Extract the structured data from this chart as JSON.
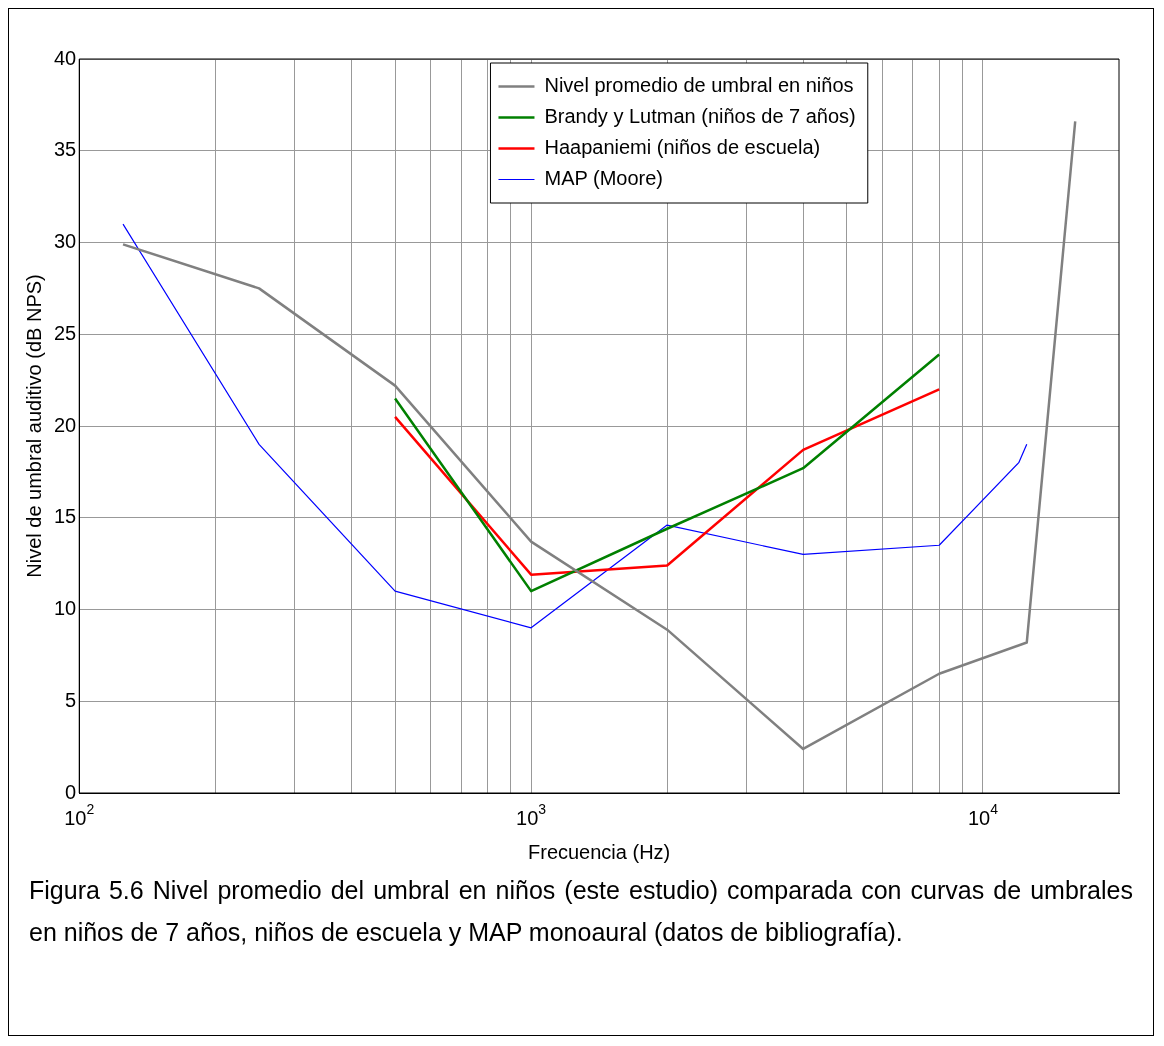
{
  "chart_data": {
    "type": "line",
    "xlabel": "Frecuencia (Hz)",
    "ylabel": "Nivel de umbral auditivo (dB NPS)",
    "log": "x",
    "grid": true,
    "legend": "top",
    "marker": "none",
    "line_style": "solid",
    "xlim": [
      100,
      20000
    ],
    "ylim": [
      0,
      40
    ],
    "xticks": [
      {
        "value": 100,
        "label": "10$^{2}$"
      },
      {
        "value": 200,
        "label": null
      },
      {
        "value": 300,
        "label": null
      },
      {
        "value": 400,
        "label": null
      },
      {
        "value": 500,
        "label": null
      },
      {
        "value": 600,
        "label": null
      },
      {
        "value": 700,
        "label": null
      },
      {
        "value": 800,
        "label": null
      },
      {
        "value": 900,
        "label": null
      },
      {
        "value": 1000,
        "label": "10$^{3}$"
      },
      {
        "value": 2000,
        "label": null
      },
      {
        "value": 3000,
        "label": null
      },
      {
        "value": 4000,
        "label": null
      },
      {
        "value": 5000,
        "label": null
      },
      {
        "value": 6000,
        "label": null
      },
      {
        "value": 7000,
        "label": null
      },
      {
        "value": 8000,
        "label": null
      },
      {
        "value": 9000,
        "label": null
      },
      {
        "value": 10000,
        "label": "10$^{4}$"
      }
    ],
    "yticks": [
      0,
      5,
      10,
      15,
      20,
      25,
      30,
      35,
      40
    ],
    "series": [
      {
        "name": "Nivel promedio de umbral en niños",
        "color": "#808080",
        "x": [
          125,
          250,
          500,
          1000,
          2000,
          4000,
          8000,
          12500,
          16000
        ],
        "values": [
          29.9,
          27.5,
          22.2,
          13.7,
          8.9,
          2.4,
          6.5,
          8.2,
          36.6
        ]
      },
      {
        "name": "Brandy y Lutman (niños de 7 años)",
        "color": "#008000",
        "x": [
          500,
          1000,
          2000,
          4000,
          8000
        ],
        "values": [
          21.5,
          11.0,
          14.4,
          17.7,
          23.9
        ]
      },
      {
        "name": "Haapaniemi (niños de escuela)",
        "color": "#ff0000",
        "x": [
          500,
          1000,
          2000,
          4000,
          8000
        ],
        "values": [
          20.5,
          11.9,
          12.4,
          18.7,
          22.0
        ]
      },
      {
        "name": "MAP (Moore)",
        "color": "#0000ff",
        "x": [
          125,
          250,
          500,
          1000,
          2000,
          4000,
          8000,
          12000,
          12500
        ],
        "values": [
          31.0,
          19.0,
          11.0,
          9.0,
          14.6,
          13.0,
          13.5,
          18.0,
          19.0
        ]
      }
    ],
    "annotations": [
      "Figura 5.6  Nivel promedio del umbral en niños (este estudio) comparada con curvas de umbrales en niños de 7 años, niños de escuela y MAP monoaural (datos de bibliografía)."
    ]
  }
}
